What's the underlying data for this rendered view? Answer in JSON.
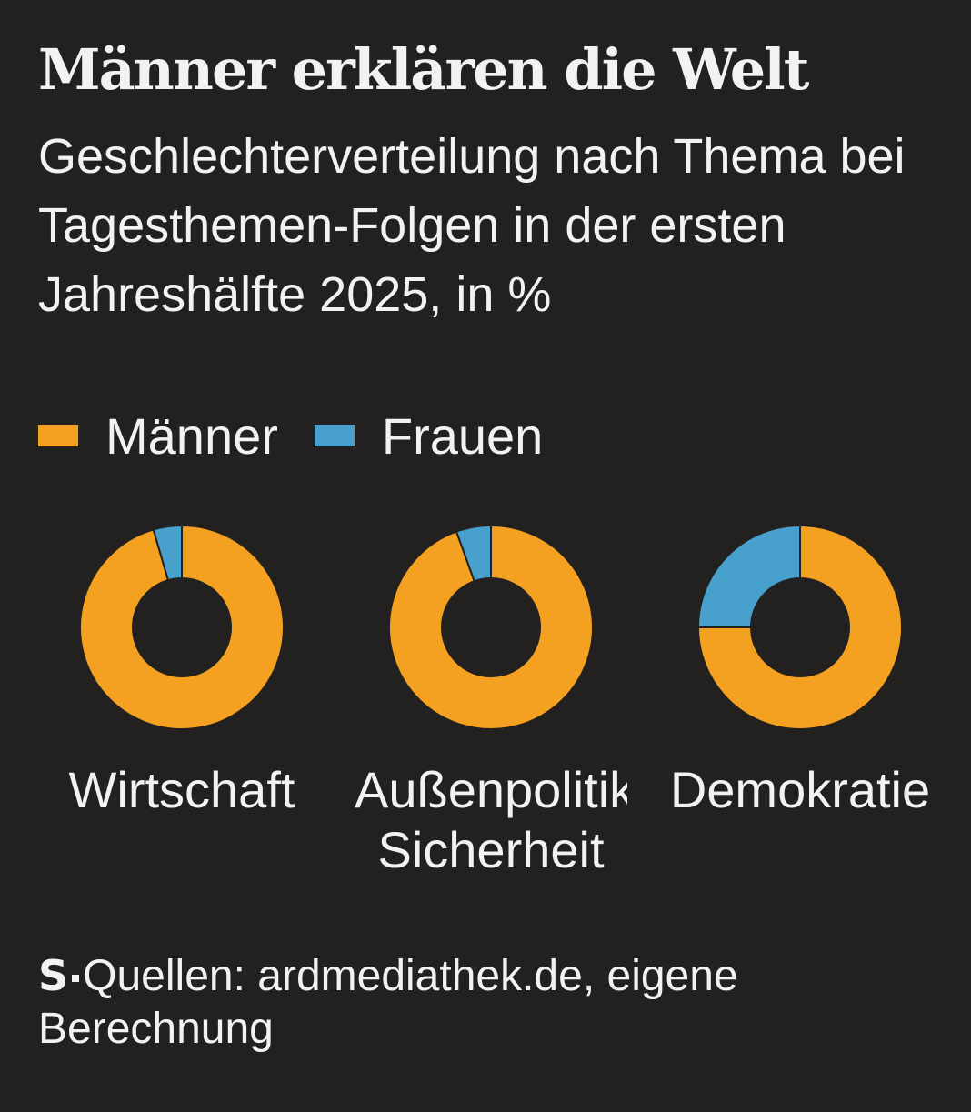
{
  "title": "Männer erklären die Welt",
  "subtitle": "Geschlechterverteilung nach Thema bei Tagesthemen-Folgen in der ersten Jahreshälfte 2025, in %",
  "legend": {
    "men_label": "Männer",
    "women_label": "Frauen"
  },
  "colors": {
    "men": "#f4a021",
    "women": "#48a0cc",
    "background": "#222120"
  },
  "chart_data": {
    "type": "donut",
    "series": [
      {
        "name": "Männer",
        "values": [
          95.5,
          94.5,
          75
        ]
      },
      {
        "name": "Frauen",
        "values": [
          4.5,
          5.5,
          25
        ]
      }
    ],
    "categories": [
      "Wirtschaft",
      "Außenpolitik, Sicherheit",
      "Demokratie"
    ],
    "category_labels": [
      [
        "Wirtschaft"
      ],
      [
        "Außenpolitik,",
        "Sicherheit"
      ],
      [
        "Demokratie"
      ]
    ],
    "unit": "%"
  },
  "footer": {
    "logo": "S",
    "source": "Quellen: ardmediathek.de, eigene Berechnung"
  }
}
